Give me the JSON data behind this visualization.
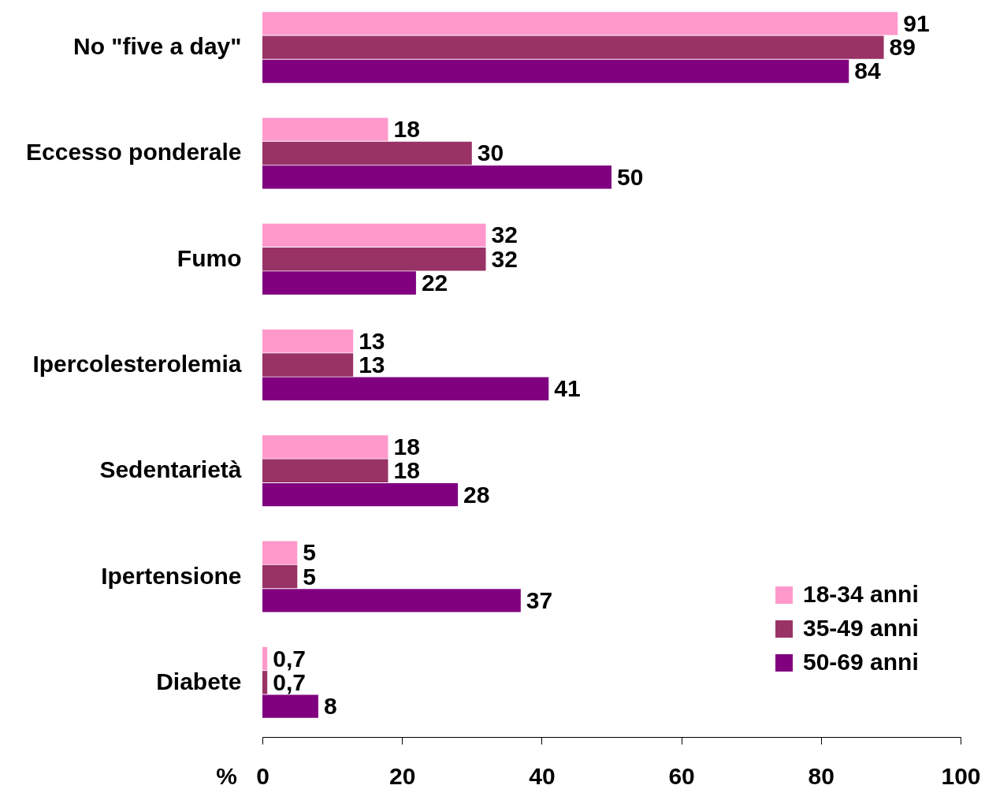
{
  "chart_data": {
    "type": "bar",
    "orientation": "horizontal",
    "categories": [
      "No \"five a day\"",
      "Eccesso ponderale",
      "Fumo",
      "Ipercolesterolemia",
      "Sedentarietà",
      "Ipertensione",
      "Diabete"
    ],
    "series": [
      {
        "name": "18-34 anni",
        "color": "#ff99cc",
        "values": [
          91,
          18,
          32,
          13,
          18,
          5,
          0.7
        ],
        "value_labels": [
          "91",
          "18",
          "32",
          "13",
          "18",
          "5",
          "0,7"
        ]
      },
      {
        "name": "35-49 anni",
        "color": "#993366",
        "values": [
          89,
          30,
          32,
          13,
          18,
          5,
          0.7
        ],
        "value_labels": [
          "89",
          "30",
          "32",
          "13",
          "18",
          "5",
          "0,7"
        ]
      },
      {
        "name": "50-69 anni",
        "color": "#800080",
        "values": [
          84,
          50,
          22,
          41,
          28,
          37,
          8
        ],
        "value_labels": [
          "84",
          "50",
          "22",
          "41",
          "28",
          "37",
          "8"
        ]
      }
    ],
    "xlabel": "%",
    "xlim": [
      0,
      100
    ],
    "xticks": [
      0,
      20,
      40,
      60,
      80,
      100
    ],
    "legend": "bottom right"
  }
}
